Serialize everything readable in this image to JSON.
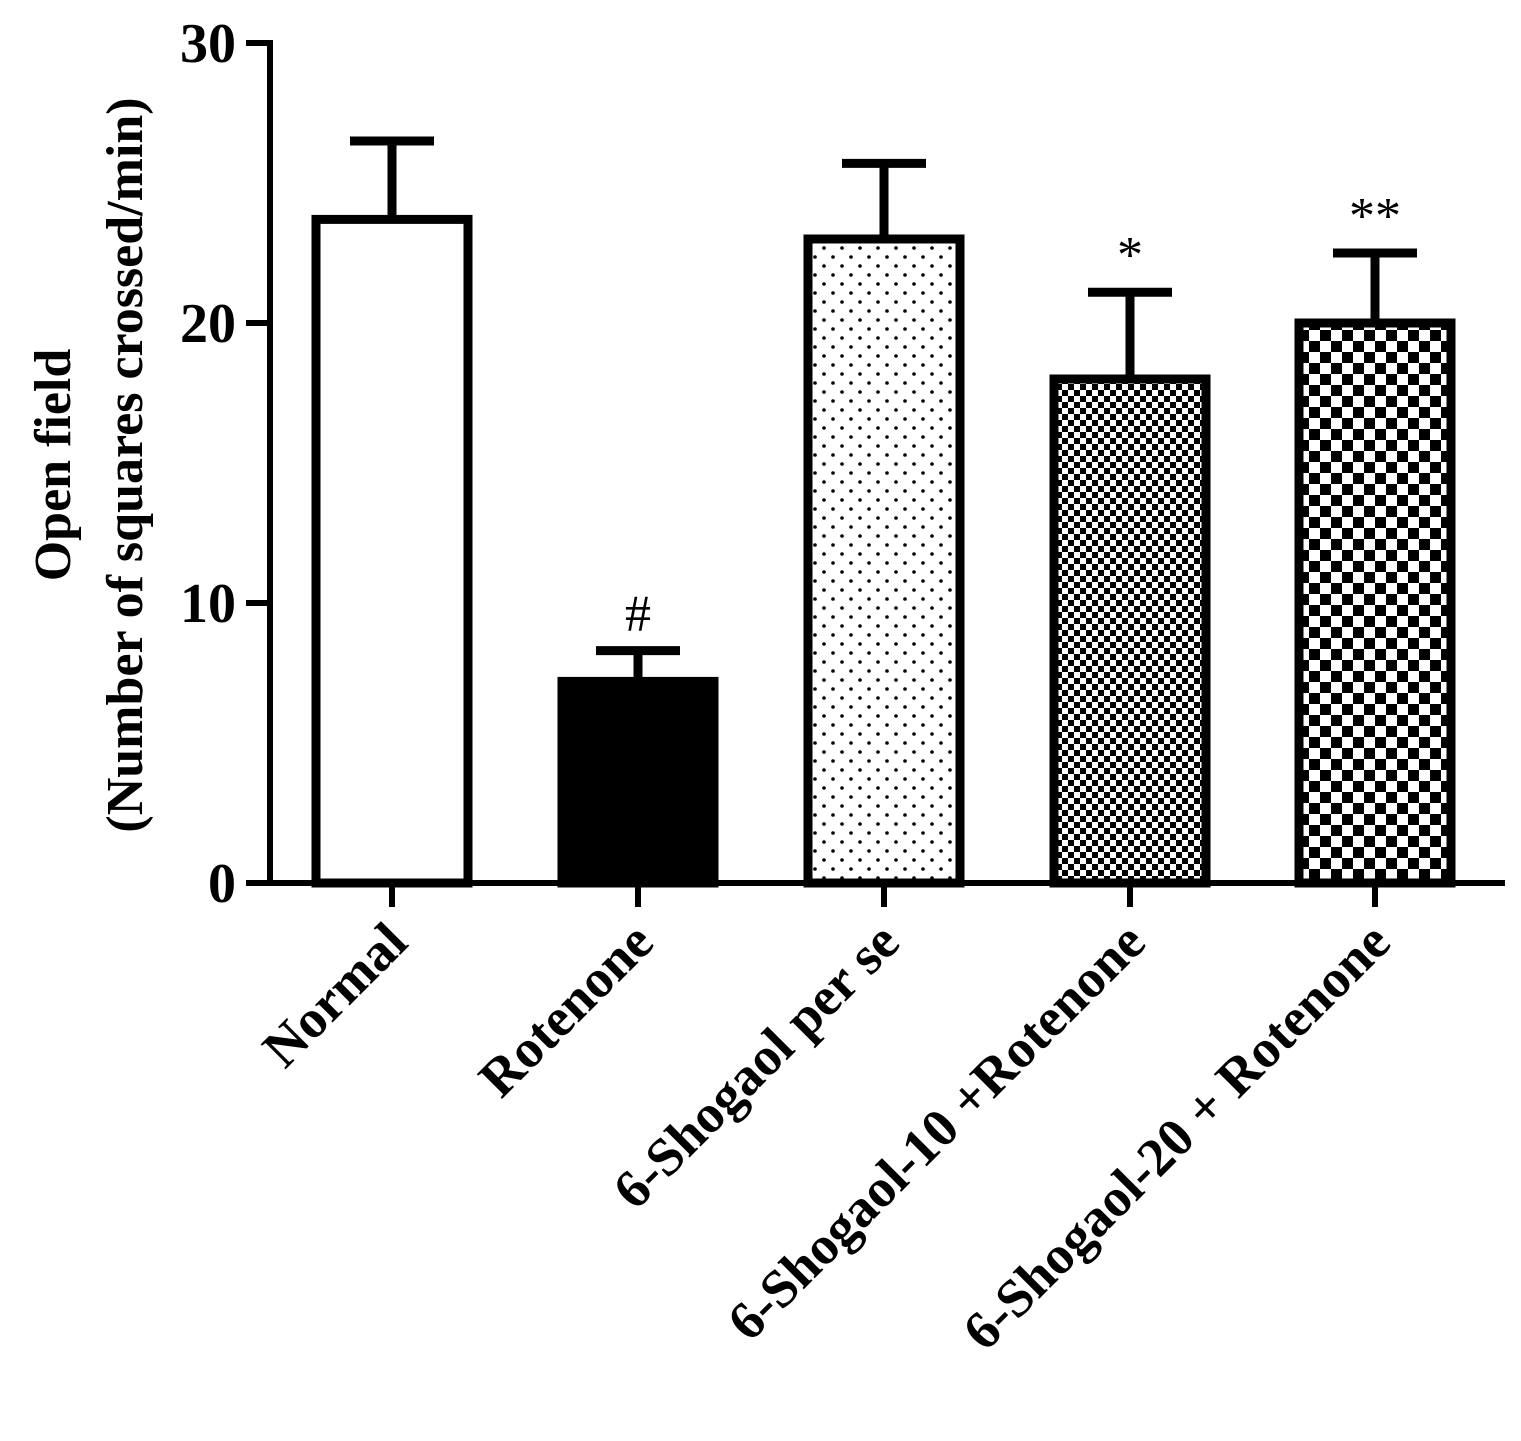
{
  "chart_data": {
    "type": "bar",
    "title": "",
    "xlabel": "",
    "ylabel_lines": [
      "Open field",
      "(Number of squares crossed/min)"
    ],
    "ylim": [
      0,
      30
    ],
    "yticks": [
      0,
      10,
      20,
      30
    ],
    "categories": [
      "Normal",
      "Rotenone",
      "6-Shogaol per se",
      "6-Shogaol-10 +Rotenone",
      "6-Shogaol-20 + Rotenone"
    ],
    "values": [
      23.7,
      7.2,
      23.0,
      18.0,
      20.0
    ],
    "errors": [
      2.8,
      1.1,
      2.7,
      3.1,
      2.5
    ],
    "annotations": [
      "",
      "#",
      "",
      "*",
      "**"
    ],
    "fills": [
      "white",
      "black",
      "dots",
      "fine-check",
      "coarse-check"
    ],
    "colors": {
      "ink": "#000000",
      "background": "#ffffff"
    }
  }
}
